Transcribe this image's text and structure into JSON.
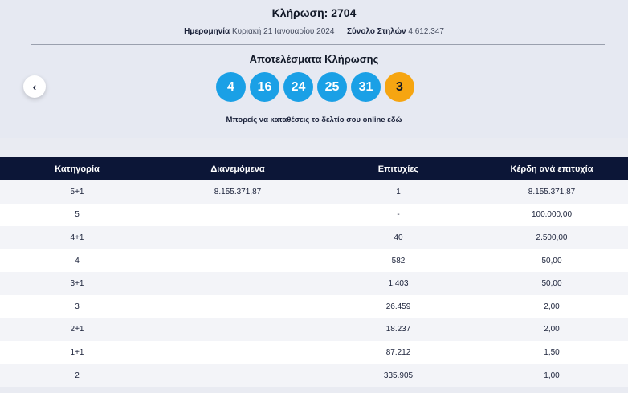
{
  "draw": {
    "title": "Κλήρωση: 2704",
    "date_label": "Ημερομηνία",
    "date_value": "Κυριακή 21 Ιανουαρίου 2024",
    "columns_label": "Σύνολο Στηλών",
    "columns_value": "4.612.347"
  },
  "results": {
    "title": "Αποτελέσματα Κλήρωσης",
    "numbers": [
      "4",
      "16",
      "24",
      "25",
      "31"
    ],
    "bonus": "3"
  },
  "colors": {
    "ball": "#1aa0e6",
    "bonus_ball": "#f6a511",
    "header_bg": "#0c1637"
  },
  "nav": {
    "back_icon": "chevron-left-icon",
    "back_glyph": "‹"
  },
  "online_text": "Μπορείς να καταθέσεις το δελτίο σου online εδώ",
  "table": {
    "headers": [
      "Κατηγορία",
      "Διανεμόμενα",
      "Επιτυχίες",
      "Κέρδη ανά επιτυχία"
    ],
    "rows": [
      [
        "5+1",
        "8.155.371,87",
        "1",
        "8.155.371,87"
      ],
      [
        "5",
        "",
        "-",
        "100.000,00"
      ],
      [
        "4+1",
        "",
        "40",
        "2.500,00"
      ],
      [
        "4",
        "",
        "582",
        "50,00"
      ],
      [
        "3+1",
        "",
        "1.403",
        "50,00"
      ],
      [
        "3",
        "",
        "26.459",
        "2,00"
      ],
      [
        "2+1",
        "",
        "18.237",
        "2,00"
      ],
      [
        "1+1",
        "",
        "87.212",
        "1,50"
      ],
      [
        "2",
        "",
        "335.905",
        "1,00"
      ]
    ]
  }
}
